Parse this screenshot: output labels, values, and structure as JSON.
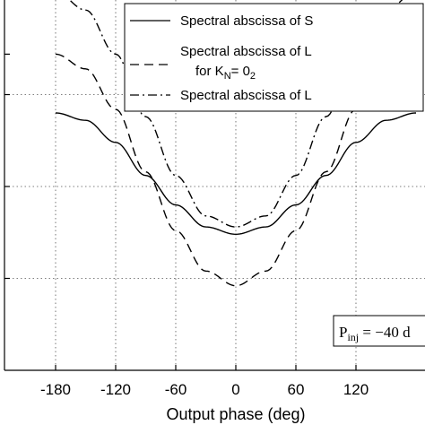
{
  "chart_data": {
    "type": "line",
    "xlabel": "Output phase (deg)",
    "xlim": [
      -180,
      180
    ],
    "ylim": [
      0,
      1
    ],
    "xticks": [
      -180,
      -120,
      -60,
      0,
      60,
      120
    ],
    "xtick_labels": [
      "-180",
      "-120",
      "-60",
      "0",
      "60",
      "120"
    ],
    "grid": true,
    "legend_position": "top-right",
    "series": [
      {
        "name": "Spectral abscissa of S",
        "style": "solid",
        "x": [
          -180,
          -150,
          -120,
          -90,
          -60,
          -30,
          0,
          30,
          60,
          90,
          120,
          150,
          180
        ],
        "y": [
          0.7,
          0.68,
          0.62,
          0.53,
          0.45,
          0.39,
          0.37,
          0.39,
          0.45,
          0.53,
          0.62,
          0.68,
          0.7
        ]
      },
      {
        "name": "Spectral abscissa of L",
        "name_line2": "for K",
        "name_sub": "N",
        "name_after": "= 0",
        "name_sub2": "2",
        "style": "dashed",
        "x": [
          -180,
          -150,
          -120,
          -90,
          -60,
          -30,
          0,
          30,
          60,
          90,
          120,
          150,
          180
        ],
        "y": [
          0.86,
          0.82,
          0.71,
          0.54,
          0.38,
          0.27,
          0.23,
          0.27,
          0.38,
          0.54,
          0.71,
          0.82,
          0.86
        ]
      },
      {
        "name": "Spectral abscissa of L",
        "style": "dashdot",
        "x": [
          -180,
          -150,
          -120,
          -90,
          -60,
          -30,
          0,
          30,
          60,
          90,
          120,
          150,
          180
        ],
        "y": [
          1.03,
          0.98,
          0.86,
          0.69,
          0.53,
          0.42,
          0.39,
          0.42,
          0.53,
          0.69,
          0.86,
          0.98,
          1.03
        ]
      }
    ],
    "annotation": {
      "prefix": "P",
      "sub": "inj",
      "suffix": " = −40 d"
    }
  }
}
